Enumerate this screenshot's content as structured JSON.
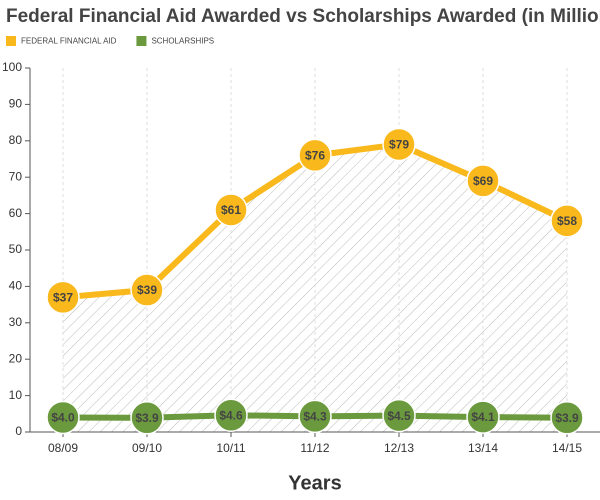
{
  "chart_data": {
    "type": "line",
    "title": "Federal Financial Aid Awarded vs Scholarships Awarded (in Millions)",
    "x_label": "Years",
    "categories": [
      "08/09",
      "09/10",
      "10/11",
      "11/12",
      "12/13",
      "13/14",
      "14/15"
    ],
    "series": [
      {
        "name": "FEDERAL FINANCIAL AID",
        "color": "#f9b81b",
        "values": [
          37,
          39,
          61,
          76,
          79,
          69,
          58
        ],
        "value_labels": [
          "$37",
          "$39",
          "$61",
          "$76",
          "$79",
          "$69",
          "$58"
        ]
      },
      {
        "name": "SCHOLARSHIPS",
        "color": "#6b9a3e",
        "values": [
          4.0,
          3.9,
          4.6,
          4.3,
          4.5,
          4.1,
          3.9
        ],
        "value_labels": [
          "$4.0",
          "$3.9",
          "$4.6",
          "$4.3",
          "$4.5",
          "$4.1",
          "$3.9"
        ]
      }
    ],
    "ylim": [
      0,
      100
    ],
    "yticks": [
      0,
      10,
      20,
      30,
      40,
      50,
      60,
      70,
      80,
      90,
      100
    ]
  }
}
